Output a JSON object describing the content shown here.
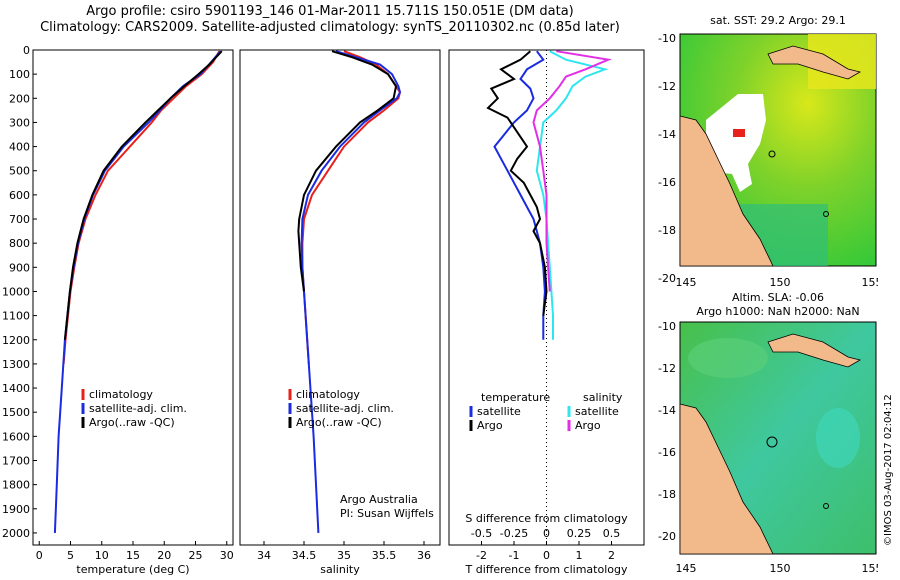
{
  "header": {
    "line1": "Argo profile: csiro 5901193_146 01-Mar-2011 15.711S 150.051E (DM data)",
    "line2": "Climatology: CARS2009. Satellite-adjusted climatology: synTS_20110302.nc (0.85d later)"
  },
  "colors": {
    "climatology": "#e8211a",
    "satellite": "#1a2be0",
    "argo": "#000000",
    "sat_salinity": "#2ee6ee",
    "argo_salinity": "#e22ee6",
    "land": "#f2b98a",
    "sst_warm": "#e8e81a",
    "sst_mid": "#3fcf2a",
    "sla_mid": "#4ec86a"
  },
  "chart_data": [
    {
      "id": "temperature",
      "type": "line",
      "xlabel": "temperature (deg C)",
      "ylabel": "depth",
      "xlim": [
        -1,
        31
      ],
      "ylim": [
        2050,
        0
      ],
      "xticks": [
        0,
        5,
        10,
        15,
        20,
        25,
        30
      ],
      "yticks": [
        0,
        100,
        200,
        300,
        400,
        500,
        600,
        700,
        800,
        900,
        1000,
        1100,
        1200,
        1300,
        1400,
        1500,
        1600,
        1700,
        1800,
        1900,
        2000
      ],
      "legend": [
        "climatology",
        "satellite-adj. clim.",
        "Argo(..raw -QC)"
      ],
      "series": [
        {
          "name": "climatology",
          "color_key": "climatology",
          "depth": [
            5,
            50,
            100,
            150,
            200,
            250,
            300,
            400,
            500,
            600,
            700,
            800,
            900,
            1000,
            1100,
            1200,
            1300
          ],
          "values": [
            28.8,
            27.8,
            26.0,
            23.5,
            21.5,
            19.5,
            18.0,
            14.5,
            11.0,
            9.0,
            7.4,
            6.3,
            5.6,
            5.0,
            4.6,
            4.2,
            3.9
          ]
        },
        {
          "name": "satellite-adj. clim.",
          "color_key": "satellite",
          "depth": [
            5,
            50,
            100,
            150,
            200,
            250,
            300,
            400,
            500,
            600,
            700,
            800,
            900,
            1000,
            1200,
            1400,
            1600,
            1800,
            2000
          ],
          "values": [
            29.0,
            27.5,
            25.8,
            23.0,
            21.0,
            19.3,
            17.5,
            13.5,
            10.5,
            8.6,
            7.2,
            6.2,
            5.5,
            4.9,
            4.1,
            3.6,
            3.1,
            2.8,
            2.5
          ]
        },
        {
          "name": "Argo(..raw -QC)",
          "color_key": "argo",
          "depth": [
            5,
            30,
            60,
            100,
            150,
            200,
            250,
            300,
            400,
            500,
            600,
            700,
            800,
            900,
            1000,
            1100,
            1200
          ],
          "values": [
            29.2,
            28.3,
            27.2,
            25.5,
            23.2,
            21.0,
            19.0,
            17.0,
            13.2,
            10.3,
            8.5,
            7.1,
            6.1,
            5.4,
            4.9,
            4.5,
            4.1
          ]
        }
      ]
    },
    {
      "id": "salinity",
      "type": "line",
      "xlabel": "salinity",
      "xlim": [
        33.7,
        36.2
      ],
      "ylim": [
        2050,
        0
      ],
      "xticks": [
        34,
        34.5,
        35,
        35.5,
        36
      ],
      "legend": [
        "climatology",
        "satellite-adj. clim.",
        "Argo(..raw -QC)"
      ],
      "credit": [
        "Argo Australia",
        "PI: Susan Wijffels"
      ],
      "series": [
        {
          "name": "climatology",
          "color_key": "climatology",
          "depth": [
            5,
            30,
            60,
            100,
            150,
            175,
            200,
            250,
            300,
            400,
            500,
            600,
            700,
            800,
            900,
            1000,
            1100,
            1200,
            1300
          ],
          "values": [
            35.0,
            35.2,
            35.4,
            35.55,
            35.65,
            35.7,
            35.68,
            35.5,
            35.3,
            35.0,
            34.8,
            34.6,
            34.5,
            34.48,
            34.48,
            34.5,
            34.52,
            34.54,
            34.56
          ]
        },
        {
          "name": "satellite-adj. clim.",
          "color_key": "satellite",
          "depth": [
            5,
            30,
            60,
            100,
            150,
            175,
            200,
            250,
            300,
            400,
            500,
            600,
            700,
            800,
            900,
            1000,
            1200,
            1400,
            1600,
            1800,
            2000
          ],
          "values": [
            34.9,
            35.15,
            35.45,
            35.6,
            35.68,
            35.7,
            35.66,
            35.45,
            35.25,
            34.95,
            34.72,
            34.55,
            34.48,
            34.47,
            34.48,
            34.5,
            34.54,
            34.58,
            34.62,
            34.65,
            34.68
          ]
        },
        {
          "name": "Argo(..raw -QC)",
          "color_key": "argo",
          "depth": [
            5,
            30,
            60,
            100,
            150,
            200,
            250,
            300,
            400,
            500,
            600,
            700,
            750,
            800,
            900,
            1000
          ],
          "values": [
            34.85,
            35.1,
            35.35,
            35.55,
            35.65,
            35.62,
            35.42,
            35.2,
            34.9,
            34.65,
            34.5,
            34.44,
            34.43,
            34.44,
            34.46,
            34.5
          ]
        }
      ]
    },
    {
      "id": "difference",
      "type": "line",
      "xlabel": "T difference from climatology",
      "xlabel_top": "S difference from climatology",
      "xlim": [
        -3,
        3
      ],
      "ylim": [
        2050,
        0
      ],
      "xticks": [
        -2,
        -1,
        0,
        1,
        2
      ],
      "xticks_s": [
        "-0.5",
        "-0.25",
        "0",
        "0.25",
        "0.5"
      ],
      "xticks_s_values": [
        -2,
        -1,
        0,
        1,
        2
      ],
      "legend_temperature": {
        "heading": "temperature",
        "items": [
          "satellite",
          "Argo"
        ]
      },
      "legend_salinity": {
        "heading": "salinity",
        "items": [
          "satellite",
          "Argo"
        ]
      },
      "series": [
        {
          "name": "T satellite",
          "color_key": "satellite",
          "depth": [
            5,
            40,
            80,
            120,
            160,
            200,
            250,
            300,
            350,
            400,
            450,
            500,
            550,
            600,
            650,
            700,
            750,
            800,
            900,
            1000,
            1100,
            1200
          ],
          "values": [
            -0.3,
            -0.1,
            -0.6,
            -0.8,
            -0.5,
            -0.4,
            -0.6,
            -1.0,
            -1.3,
            -1.6,
            -1.4,
            -1.2,
            -1.0,
            -0.8,
            -0.6,
            -0.4,
            -0.3,
            -0.2,
            -0.1,
            -0.05,
            -0.1,
            -0.1
          ]
        },
        {
          "name": "T Argo",
          "color_key": "argo",
          "depth": [
            5,
            40,
            80,
            120,
            160,
            200,
            240,
            280,
            320,
            360,
            400,
            450,
            500,
            550,
            600,
            650,
            700,
            750,
            800,
            900,
            1000,
            1100
          ],
          "values": [
            -0.5,
            -0.8,
            -1.4,
            -1.0,
            -1.7,
            -1.5,
            -1.8,
            -1.2,
            -1.0,
            -0.8,
            -0.6,
            -0.9,
            -1.1,
            -0.7,
            -0.5,
            -0.3,
            -0.2,
            -0.4,
            -0.2,
            -0.05,
            0.0,
            -0.1
          ]
        },
        {
          "name": "S satellite",
          "color_key": "sat_salinity",
          "depth": [
            5,
            40,
            80,
            110,
            150,
            200,
            250,
            300,
            400,
            500,
            600,
            700,
            800,
            900,
            1000,
            1100,
            1200
          ],
          "values": [
            0.1,
            0.6,
            1.8,
            1.2,
            0.8,
            0.6,
            0.3,
            -0.1,
            -0.2,
            -0.3,
            -0.1,
            0.0,
            0.05,
            0.1,
            0.15,
            0.2,
            0.2
          ]
        },
        {
          "name": "S Argo",
          "color_key": "argo_salinity",
          "depth": [
            5,
            40,
            80,
            110,
            150,
            200,
            250,
            300,
            400,
            500,
            600,
            700,
            800,
            900,
            1000
          ],
          "values": [
            0.3,
            1.9,
            1.2,
            0.6,
            0.4,
            0.1,
            -0.3,
            -0.4,
            -0.2,
            -0.1,
            0.0,
            0.0,
            0.0,
            0.05,
            0.1
          ]
        }
      ]
    }
  ],
  "maps": {
    "sst": {
      "title": "sat. SST: 29.2  Argo: 29.1",
      "yticks": [
        "-10",
        "-12",
        "-14",
        "-16",
        "-18",
        "-20"
      ],
      "xticks": [
        "145",
        "150",
        "155"
      ]
    },
    "sla": {
      "title_line1": "Altim. SLA: -0.06",
      "title_line2": "Argo h1000: NaN h2000: NaN",
      "yticks": [
        "-10",
        "-12",
        "-14",
        "-16",
        "-18",
        "-20"
      ],
      "xticks": [
        "145",
        "150",
        "155"
      ]
    }
  },
  "footer": {
    "credit": "©IMOS 03-Aug-2017 02:04:12"
  }
}
